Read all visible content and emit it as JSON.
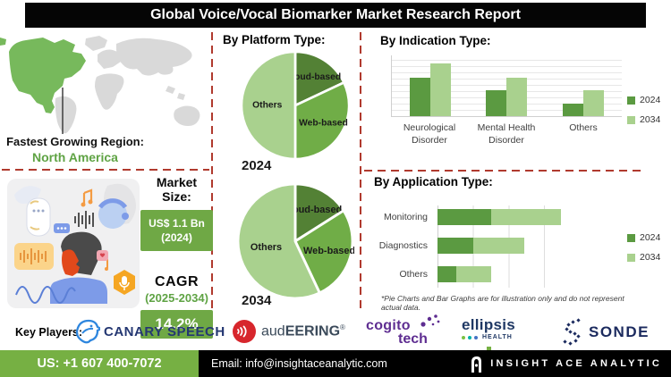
{
  "header": {
    "title": "Global Voice/Vocal Biomarker Market Research Report"
  },
  "left": {
    "map": {
      "label_title": "Fastest Growing Region:",
      "label_region": "North America"
    },
    "market": {
      "title": "Market Size:",
      "value_line1": "US$ 1.1 Bn",
      "value_line2": "(2024)",
      "cagr_title": "CAGR",
      "cagr_period": "(2025-2034)",
      "cagr_value": "14.2%"
    }
  },
  "middle": {
    "heading": "By Platform Type:",
    "pie1_year": "2024",
    "pie2_year": "2034"
  },
  "right": {
    "indication_heading": "By  Indication Type:",
    "application_heading": "By Application Type:",
    "footnote": "*Pie Charts and Bar Graphs are for illustration only and do not represent actual data."
  },
  "chart_data": [
    {
      "type": "pie",
      "title": "By Platform Type - 2024",
      "labels": [
        "Cloud-based",
        "Web-based",
        "Others"
      ],
      "values": [
        18,
        32,
        50
      ],
      "colors": [
        "#538135",
        "#70AD47",
        "#A9D18E"
      ],
      "note": "illustrative only"
    },
    {
      "type": "pie",
      "title": "By Platform Type - 2034",
      "labels": [
        "Cloud-based",
        "Web-based",
        "Others"
      ],
      "values": [
        16,
        27,
        57
      ],
      "colors": [
        "#538135",
        "#70AD47",
        "#A9D18E"
      ],
      "note": "illustrative only"
    },
    {
      "type": "bar",
      "title": "By Indication Type",
      "categories": [
        "Neurological\nDisorder",
        "Mental Health\nDisorder",
        "Others"
      ],
      "series": [
        {
          "name": "2024",
          "color": "#5B9A41",
          "values": [
            3.0,
            2.0,
            1.0
          ]
        },
        {
          "name": "2034",
          "color": "#A9D18E",
          "values": [
            4.1,
            3.0,
            2.0
          ]
        }
      ],
      "ylim": [
        0,
        4.7
      ],
      "grid": true,
      "legend_position": "right",
      "note": "illustrative only"
    },
    {
      "type": "bar",
      "orientation": "horizontal-stacked",
      "title": "By Application Type",
      "categories": [
        "Monitoring",
        "Diagnostics",
        "Others"
      ],
      "series": [
        {
          "name": "2024",
          "color": "#5B9A41",
          "values": [
            3.8,
            2.5,
            1.3
          ]
        },
        {
          "name": "2034",
          "color": "#A9D18E",
          "values": [
            4.9,
            3.6,
            2.5
          ]
        }
      ],
      "xlim": [
        0,
        10
      ],
      "grid": true,
      "legend_position": "right",
      "note": "illustrative only"
    }
  ],
  "key_players": {
    "label": "Key Players:",
    "canary": "CANARY SPEECH",
    "audeering": "aud",
    "audeering_caps": "EERING",
    "audeering_reg": "®",
    "cogito_line1": "cogito",
    "cogito_line2": "tech",
    "ellipsis_word": "ellipsis",
    "ellipsis_health": "HEALTH",
    "sonde": "SONDE"
  },
  "footer": {
    "phone": "US: +1 607 400-7072",
    "email": "Email: info@insightaceanalytic.com",
    "brand": "INSIGHT ACE ANALYTIC"
  },
  "colors": {
    "badge_green": "#6FA845",
    "map_green": "#77B95C",
    "dashed_red": "#B03A2E",
    "footer_green": "#76B043"
  }
}
